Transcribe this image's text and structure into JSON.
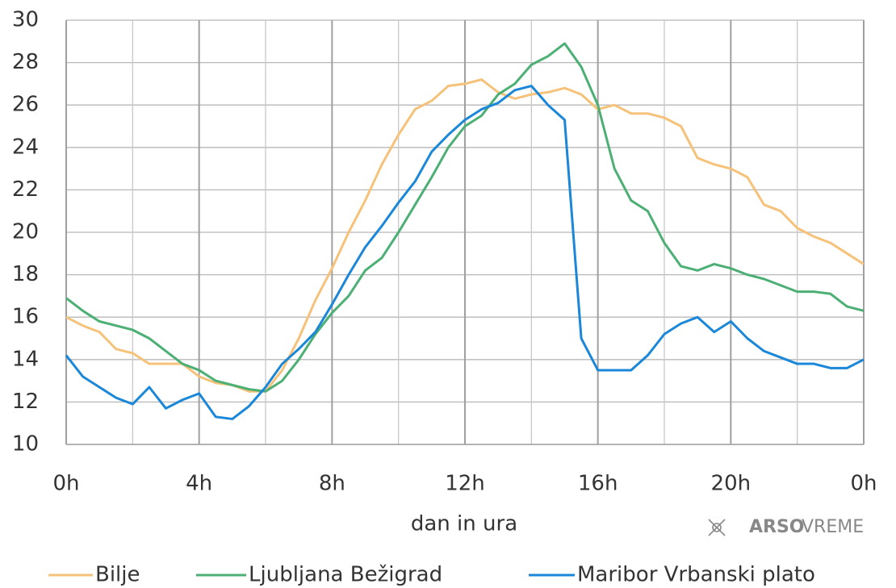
{
  "chart_data": {
    "type": "line",
    "xlabel": "dan in ura",
    "logo": {
      "bold": "ARSO",
      "light": "VREME"
    },
    "x": [
      0,
      0.5,
      1,
      1.5,
      2,
      2.5,
      3,
      3.5,
      4,
      4.5,
      5,
      5.5,
      6,
      6.5,
      7,
      7.5,
      8,
      8.5,
      9,
      9.5,
      10,
      10.5,
      11,
      11.5,
      12,
      12.5,
      13,
      13.5,
      14,
      14.5,
      15,
      15.5,
      16,
      16.5,
      17,
      17.5,
      18,
      18.5,
      19,
      19.5,
      20,
      20.5,
      21,
      21.5,
      22,
      22.5,
      23,
      23.5,
      24
    ],
    "xlim": [
      0,
      24
    ],
    "xticks": [
      {
        "value": 0,
        "label": "0h"
      },
      {
        "value": 4,
        "label": "4h"
      },
      {
        "value": 8,
        "label": "8h"
      },
      {
        "value": 12,
        "label": "12h"
      },
      {
        "value": 16,
        "label": "16h"
      },
      {
        "value": 20,
        "label": "20h"
      },
      {
        "value": 24,
        "label": "0h"
      }
    ],
    "xminor_ticks": [
      2,
      6,
      10,
      14,
      18,
      22
    ],
    "ylim": [
      10,
      30
    ],
    "yticks": [
      10,
      12,
      14,
      16,
      18,
      20,
      22,
      24,
      26,
      28,
      30
    ],
    "grid": true,
    "legend": "bottom",
    "series": [
      {
        "name": "Bilje",
        "color": "#f6c27a",
        "values": [
          16.0,
          15.6,
          15.3,
          14.5,
          14.3,
          13.8,
          13.8,
          13.8,
          13.2,
          12.9,
          12.8,
          12.5,
          12.5,
          13.5,
          15.0,
          16.8,
          18.3,
          20.0,
          21.5,
          23.2,
          24.6,
          25.8,
          26.2,
          26.9,
          27.0,
          27.2,
          26.6,
          26.3,
          26.5,
          26.6,
          26.8,
          26.5,
          25.8,
          26.0,
          25.6,
          25.6,
          25.4,
          25.0,
          23.5,
          23.2,
          23.0,
          22.6,
          21.3,
          21.0,
          20.2,
          19.8,
          19.5,
          19.0,
          18.5
        ]
      },
      {
        "name": "Ljubljana Bežigrad",
        "color": "#4caf74",
        "values": [
          16.9,
          16.3,
          15.8,
          15.6,
          15.4,
          15.0,
          14.4,
          13.8,
          13.5,
          13.0,
          12.8,
          12.6,
          12.5,
          13.0,
          14.0,
          15.2,
          16.2,
          17.0,
          18.2,
          18.8,
          20.0,
          21.3,
          22.6,
          24.0,
          25.0,
          25.5,
          26.5,
          27.0,
          27.9,
          28.3,
          28.9,
          27.8,
          26.0,
          23.0,
          21.5,
          21.0,
          19.5,
          18.4,
          18.2,
          18.5,
          18.3,
          18.0,
          17.8,
          17.5,
          17.2,
          17.2,
          17.1,
          16.5,
          16.3
        ]
      },
      {
        "name": "Maribor Vrbanski plato",
        "color": "#1a87d8",
        "values": [
          14.2,
          13.2,
          12.7,
          12.2,
          11.9,
          12.7,
          11.7,
          12.1,
          12.4,
          11.3,
          11.2,
          11.8,
          12.7,
          13.8,
          14.5,
          15.3,
          16.6,
          18.0,
          19.3,
          20.3,
          21.4,
          22.4,
          23.8,
          24.6,
          25.3,
          25.8,
          26.1,
          26.7,
          26.9,
          26.0,
          25.3,
          15.0,
          13.5,
          13.5,
          13.5,
          14.2,
          15.2,
          15.7,
          16.0,
          15.3,
          15.8,
          15.0,
          14.4,
          14.1,
          13.8,
          13.8,
          13.6,
          13.6,
          14.0
        ]
      }
    ]
  }
}
